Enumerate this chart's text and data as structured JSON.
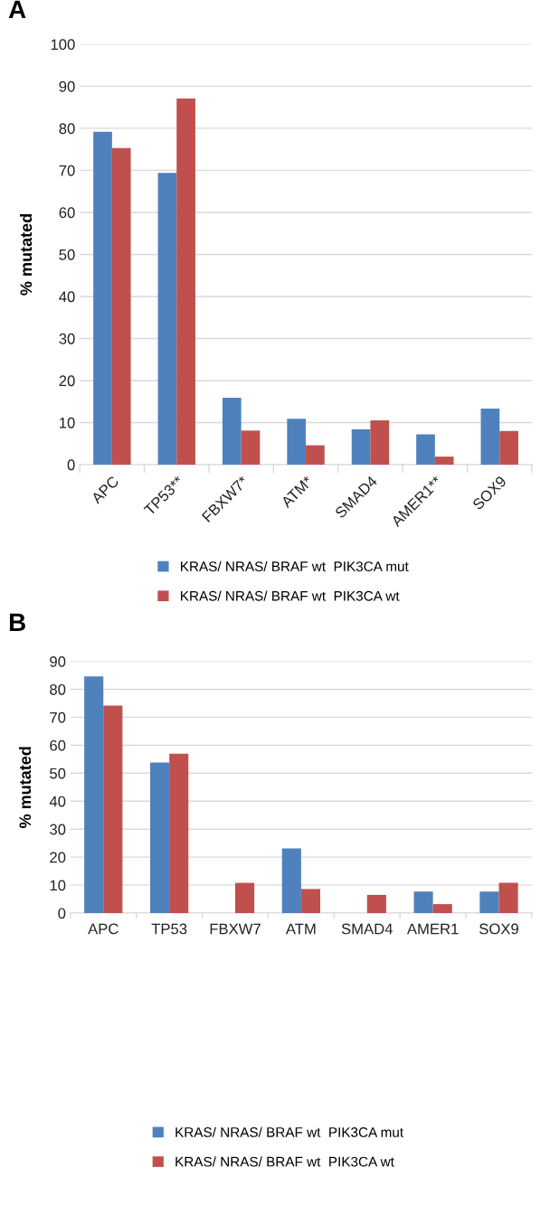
{
  "chart_data": [
    {
      "type": "bar",
      "title": "A",
      "ylabel": "% mutated",
      "categories": [
        "APC",
        "TP53**",
        "FBXW7*",
        "ATM*",
        "SMAD4",
        "AMER1**",
        "SOX9"
      ],
      "series": [
        {
          "name": "KRAS/ NRAS/ BRAF wt  PIK3CA mut",
          "color": "#4f81bd",
          "values": [
            79.2,
            69.4,
            15.9,
            10.9,
            8.4,
            7.2,
            13.3
          ]
        },
        {
          "name": "KRAS/ NRAS/ BRAF wt  PIK3CA wt",
          "color": "#c0504d",
          "values": [
            75.3,
            87.1,
            8.1,
            4.6,
            10.5,
            1.9,
            8.0
          ]
        }
      ],
      "ylim": [
        0,
        100
      ],
      "yticks": [
        0,
        10,
        20,
        30,
        40,
        50,
        60,
        70,
        80,
        90,
        100
      ],
      "grid": "y",
      "legend": "bottom"
    },
    {
      "type": "bar",
      "title": "B",
      "ylabel": "% mutated",
      "categories": [
        "APC",
        "TP53",
        "FBXW7",
        "ATM",
        "SMAD4",
        "AMER1",
        "SOX9"
      ],
      "series": [
        {
          "name": "KRAS/ NRAS/ BRAF wt  PIK3CA mut",
          "color": "#4f81bd",
          "values": [
            84.6,
            53.8,
            0,
            23.1,
            0,
            7.7,
            7.7
          ]
        },
        {
          "name": "KRAS/ NRAS/ BRAF wt  PIK3CA wt",
          "color": "#c0504d",
          "values": [
            74.2,
            57.0,
            10.8,
            8.6,
            6.5,
            3.2,
            10.8
          ]
        }
      ],
      "ylim": [
        0,
        90
      ],
      "yticks": [
        0,
        10,
        20,
        30,
        40,
        50,
        60,
        70,
        80,
        90
      ],
      "grid": "y",
      "legend": "bottom"
    }
  ]
}
